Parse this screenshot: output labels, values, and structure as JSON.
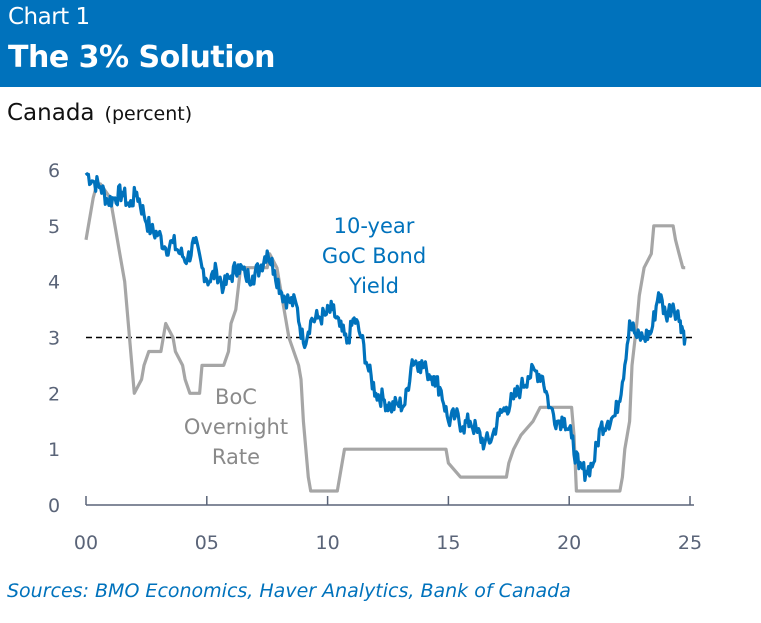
{
  "header": {
    "chart_number": "Chart 1",
    "title": "The 3% Solution"
  },
  "subtitle": {
    "region": "Canada",
    "units": "(percent)"
  },
  "source": "Sources: BMO Economics, Haver Analytics, Bank of Canada",
  "colors": {
    "header_bg": "#0072bc",
    "bond": "#0072bc",
    "overnight": "#a6a6a6",
    "reference": "#000000",
    "axis": "#5a6478"
  },
  "chart_data": {
    "type": "line",
    "title": "The 3% Solution",
    "subtitle": "Canada (percent)",
    "xlabel": "",
    "ylabel": "percent",
    "xlim": [
      2000,
      2025
    ],
    "ylim": [
      0,
      6
    ],
    "x_ticks": [
      2000,
      2005,
      2010,
      2015,
      2020,
      2025
    ],
    "x_tick_labels": [
      "00",
      "05",
      "10",
      "15",
      "20",
      "25"
    ],
    "y_ticks": [
      0,
      1,
      2,
      3,
      4,
      5,
      6
    ],
    "y_tick_labels": [
      "0",
      "1",
      "2",
      "3",
      "4",
      "5",
      "6"
    ],
    "grid": false,
    "reference_line": {
      "y": 3,
      "style": "dashed"
    },
    "series": [
      {
        "name": "10-year GoC Bond Yield",
        "label_lines": [
          "10-year",
          "GoC Bond",
          "Yield"
        ],
        "x": [
          2000.0,
          2000.3,
          2000.6,
          2000.9,
          2001.2,
          2001.5,
          2001.8,
          2002.1,
          2002.4,
          2002.7,
          2003.0,
          2003.3,
          2003.6,
          2003.9,
          2004.2,
          2004.5,
          2004.8,
          2005.1,
          2005.4,
          2005.7,
          2006.0,
          2006.3,
          2006.6,
          2006.9,
          2007.2,
          2007.5,
          2007.8,
          2008.1,
          2008.4,
          2008.7,
          2009.0,
          2009.3,
          2009.6,
          2009.9,
          2010.2,
          2010.5,
          2010.8,
          2011.1,
          2011.4,
          2011.7,
          2012.0,
          2012.3,
          2012.6,
          2012.9,
          2013.2,
          2013.5,
          2013.8,
          2014.1,
          2014.4,
          2014.7,
          2015.0,
          2015.3,
          2015.6,
          2015.9,
          2016.2,
          2016.5,
          2016.8,
          2017.1,
          2017.4,
          2017.7,
          2018.0,
          2018.3,
          2018.6,
          2018.9,
          2019.2,
          2019.5,
          2019.8,
          2020.1,
          2020.4,
          2020.7,
          2021.0,
          2021.3,
          2021.6,
          2021.9,
          2022.2,
          2022.5,
          2022.8,
          2023.1,
          2023.4,
          2023.7,
          2024.0,
          2024.3,
          2024.6,
          2024.8
        ],
        "values": [
          5.95,
          5.8,
          5.7,
          5.45,
          5.5,
          5.6,
          5.35,
          5.6,
          5.2,
          4.9,
          4.85,
          4.6,
          4.7,
          4.5,
          4.4,
          4.7,
          4.25,
          4.0,
          4.2,
          3.9,
          4.1,
          4.3,
          4.1,
          4.1,
          4.25,
          4.55,
          4.2,
          3.8,
          3.65,
          3.6,
          2.9,
          3.3,
          3.35,
          3.4,
          3.5,
          3.2,
          2.9,
          3.35,
          3.0,
          2.4,
          2.0,
          1.9,
          1.75,
          1.8,
          1.8,
          2.6,
          2.55,
          2.4,
          2.3,
          2.05,
          1.5,
          1.6,
          1.4,
          1.5,
          1.3,
          1.1,
          1.2,
          1.6,
          1.75,
          1.9,
          2.1,
          2.3,
          2.4,
          2.3,
          1.75,
          1.5,
          1.55,
          1.2,
          0.65,
          0.6,
          0.75,
          1.4,
          1.5,
          1.6,
          2.2,
          3.3,
          3.0,
          3.0,
          3.1,
          3.8,
          3.4,
          3.6,
          3.3,
          3.0
        ]
      },
      {
        "name": "BoC Overnight Rate",
        "label_lines": [
          "BoC",
          "Overnight",
          "Rate"
        ],
        "x": [
          2000.0,
          2000.1,
          2000.2,
          2000.3,
          2000.45,
          2000.6,
          2001.0,
          2001.2,
          2001.4,
          2001.6,
          2001.8,
          2002.0,
          2002.3,
          2002.4,
          2002.6,
          2003.1,
          2003.3,
          2003.6,
          2003.7,
          2004.0,
          2004.1,
          2004.3,
          2004.7,
          2004.8,
          2005.7,
          2005.9,
          2006.0,
          2006.2,
          2006.4,
          2007.5,
          2007.6,
          2007.9,
          2008.0,
          2008.2,
          2008.4,
          2008.8,
          2008.9,
          2009.0,
          2009.2,
          2009.3,
          2010.4,
          2010.5,
          2010.7,
          2014.9,
          2015.0,
          2015.5,
          2017.4,
          2017.5,
          2017.7,
          2018.0,
          2018.5,
          2018.8,
          2020.1,
          2020.2,
          2020.3,
          2022.1,
          2022.2,
          2022.3,
          2022.5,
          2022.6,
          2022.8,
          2022.9,
          2023.1,
          2023.4,
          2023.5,
          2024.3,
          2024.4,
          2024.55,
          2024.7,
          2024.8
        ],
        "values": [
          4.75,
          5.0,
          5.25,
          5.5,
          5.75,
          5.75,
          5.5,
          5.0,
          4.5,
          4.0,
          3.0,
          2.0,
          2.25,
          2.5,
          2.75,
          2.75,
          3.25,
          3.0,
          2.75,
          2.5,
          2.25,
          2.0,
          2.0,
          2.5,
          2.5,
          2.75,
          3.25,
          3.5,
          4.25,
          4.25,
          4.5,
          4.25,
          4.0,
          3.5,
          3.0,
          2.5,
          2.25,
          1.5,
          0.5,
          0.25,
          0.25,
          0.5,
          1.0,
          1.0,
          0.75,
          0.5,
          0.5,
          0.75,
          1.0,
          1.25,
          1.5,
          1.75,
          1.75,
          1.25,
          0.25,
          0.25,
          0.5,
          1.0,
          1.5,
          2.5,
          3.25,
          3.75,
          4.25,
          4.5,
          5.0,
          5.0,
          4.75,
          4.5,
          4.25,
          4.25
        ]
      }
    ]
  }
}
